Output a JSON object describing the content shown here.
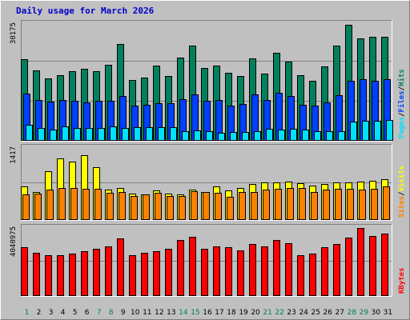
{
  "title": "Daily usage for March 2026",
  "colors": {
    "hits": "#00805c",
    "files": "#0040ff",
    "pages": "#00e0ff",
    "visits": "#ffff00",
    "sites": "#ff8000",
    "kbytes": "#ff0000",
    "weekend_day": "#00805c",
    "weekday_day": "#000000"
  },
  "chart_data": [
    {
      "type": "bar",
      "panel": "hits-files-pages",
      "ymax_label": "30175",
      "ylim": [
        0,
        30175
      ],
      "x": [
        "1",
        "2",
        "3",
        "4",
        "5",
        "6",
        "7",
        "8",
        "9",
        "10",
        "11",
        "12",
        "13",
        "14",
        "15",
        "16",
        "17",
        "18",
        "19",
        "20",
        "21",
        "22",
        "23",
        "24",
        "25",
        "26",
        "27",
        "28",
        "29",
        "30",
        "31"
      ],
      "weekend": [
        "1",
        "7",
        "8",
        "14",
        "15",
        "21",
        "22",
        "28",
        "29"
      ],
      "series": [
        {
          "name": "Hits",
          "values": [
            21000,
            18100,
            16200,
            16900,
            17900,
            18600,
            18000,
            19700,
            25100,
            15800,
            16300,
            19400,
            16700,
            21500,
            24500,
            18800,
            19400,
            17600,
            16700,
            21300,
            17400,
            22800,
            20500,
            16900,
            15500,
            19300,
            24600,
            30000,
            26400,
            26800,
            26800
          ]
        },
        {
          "name": "Files",
          "values": [
            12100,
            10600,
            10200,
            10600,
            10400,
            10000,
            10400,
            10400,
            11500,
            9100,
            9300,
            9700,
            9800,
            10800,
            11900,
            10300,
            10600,
            9100,
            9500,
            12000,
            10500,
            12300,
            11500,
            9200,
            9100,
            10000,
            11800,
            15600,
            15900,
            15600,
            15900
          ]
        },
        {
          "name": "Pages",
          "values": [
            4100,
            3300,
            2900,
            3700,
            3400,
            3300,
            3300,
            3700,
            3300,
            3600,
            3600,
            3600,
            3500,
            2500,
            2600,
            2500,
            2000,
            2200,
            2200,
            2500,
            3100,
            2800,
            3100,
            2800,
            2500,
            2500,
            2500,
            5000,
            5200,
            5100,
            5400
          ]
        }
      ]
    },
    {
      "type": "bar",
      "panel": "visits-sites",
      "ymax_label": "1417",
      "ylim": [
        0,
        1417
      ],
      "x": [
        "1",
        "2",
        "3",
        "4",
        "5",
        "6",
        "7",
        "8",
        "9",
        "10",
        "11",
        "12",
        "13",
        "14",
        "15",
        "16",
        "17",
        "18",
        "19",
        "20",
        "21",
        "22",
        "23",
        "24",
        "25",
        "26",
        "27",
        "28",
        "29",
        "30",
        "31"
      ],
      "series": [
        {
          "name": "Visits",
          "values": [
            660,
            545,
            965,
            1210,
            1150,
            1280,
            1045,
            605,
            630,
            525,
            500,
            580,
            525,
            510,
            595,
            555,
            665,
            585,
            630,
            715,
            740,
            745,
            755,
            730,
            670,
            715,
            745,
            745,
            750,
            765,
            805
          ]
        },
        {
          "name": "Sites",
          "values": [
            510,
            515,
            605,
            625,
            625,
            620,
            610,
            535,
            550,
            475,
            505,
            530,
            475,
            470,
            560,
            545,
            535,
            460,
            545,
            545,
            605,
            615,
            625,
            625,
            550,
            595,
            620,
            620,
            605,
            615,
            655
          ]
        }
      ]
    },
    {
      "type": "bar",
      "panel": "kbytes",
      "ymax_label": "4040975",
      "ylim": [
        0,
        4040975
      ],
      "x": [
        "1",
        "2",
        "3",
        "4",
        "5",
        "6",
        "7",
        "8",
        "9",
        "10",
        "11",
        "12",
        "13",
        "14",
        "15",
        "16",
        "17",
        "18",
        "19",
        "20",
        "21",
        "22",
        "23",
        "24",
        "25",
        "26",
        "27",
        "28",
        "29",
        "30",
        "31"
      ],
      "series": [
        {
          "name": "KBytes",
          "values": [
            2880000,
            2560000,
            2440000,
            2440000,
            2520000,
            2680000,
            2800000,
            2960000,
            3400000,
            2440000,
            2560000,
            2680000,
            2800000,
            3320000,
            3520000,
            2800000,
            2960000,
            2880000,
            2720000,
            3080000,
            2960000,
            3320000,
            3160000,
            2440000,
            2520000,
            2880000,
            3080000,
            3480000,
            4040975,
            3560000,
            3720000
          ]
        }
      ]
    }
  ],
  "legend": {
    "panel1": [
      {
        "text": "Pages",
        "color": "#00e0ff"
      },
      {
        "text": "/",
        "color": "#000000"
      },
      {
        "text": "Files",
        "color": "#0040ff"
      },
      {
        "text": "/",
        "color": "#000000"
      },
      {
        "text": "Hits",
        "color": "#00805c"
      }
    ],
    "panel2": [
      {
        "text": "Sites",
        "color": "#ff8000"
      },
      {
        "text": "/",
        "color": "#000000"
      },
      {
        "text": "Visits",
        "color": "#ffff00"
      }
    ],
    "panel3": [
      {
        "text": "KBytes",
        "color": "#ff0000"
      }
    ]
  }
}
